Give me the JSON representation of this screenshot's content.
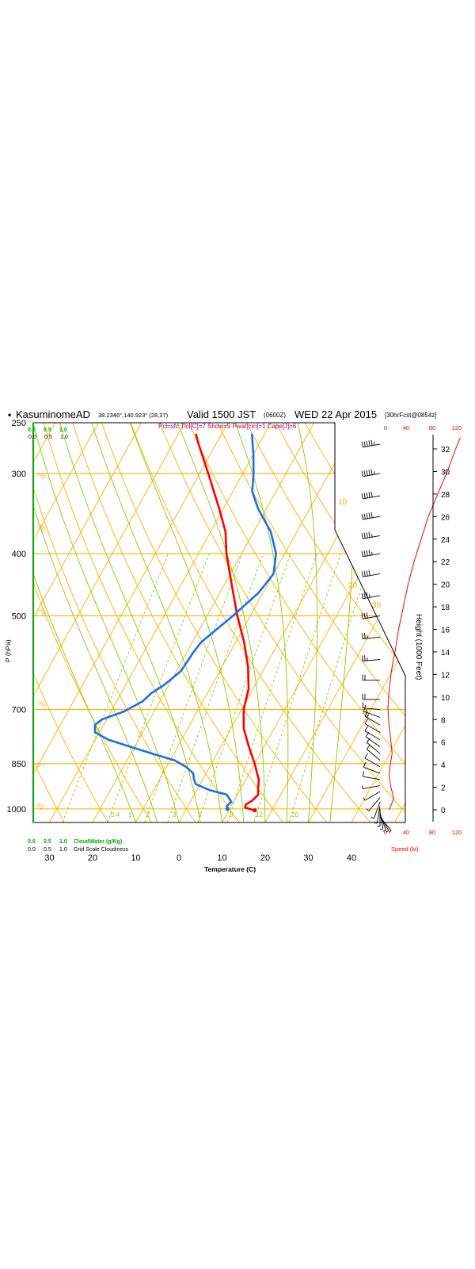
{
  "header": {
    "bullet": "•",
    "station": "KasuminomeAD",
    "coords": "38.2346°,140.923° (28,37)",
    "valid": "Valid 1500 JST",
    "utc": "(0600Z)",
    "date": "WED 22 Apr 2015",
    "fcst": "[30hrFcst@0854z]",
    "indices": "Pcl=sfc Tlcl[C]=7 Show=9 Pwat[cm]=1 Cape[J]=6"
  },
  "cloud_scales": {
    "top_green": [
      "0.0",
      "0.5",
      "1.0"
    ],
    "top_black": [
      "0.0",
      "0.5",
      "1.0"
    ],
    "bottom_green": [
      "0.0",
      "0.5",
      "1.0"
    ],
    "bottom_green_label": "CloudWater (g/Kg)",
    "bottom_black": [
      "0.0",
      "0.5",
      "1.0"
    ],
    "bottom_black_label": "Grid Scale Cloudiness"
  },
  "axes": {
    "ylabel": "P (hPa)",
    "xlabel": "Temperature (C)",
    "height_label": "Height (1000 Feet)",
    "speed_label": "Speed (kt)",
    "speed_ticks_top": [
      "0",
      "40",
      "80",
      "120"
    ],
    "speed_ticks_bottom": [
      "0",
      "40",
      "80",
      "120"
    ]
  },
  "chart_data": {
    "type": "line",
    "title": "",
    "xlabel": "Temperature (C)",
    "ylabel": "P (hPa)",
    "pressure_ticks": [
      250,
      300,
      400,
      500,
      700,
      850,
      1000
    ],
    "temperature_ticks": [
      {
        "value": -30,
        "label": "30"
      },
      {
        "value": -20,
        "label": "20"
      },
      {
        "value": -10,
        "label": "10"
      },
      {
        "value": 0,
        "label": "0"
      },
      {
        "value": 10,
        "label": "10"
      },
      {
        "value": 20,
        "label": "20"
      },
      {
        "value": 30,
        "label": "30"
      },
      {
        "value": 40,
        "label": "40"
      }
    ],
    "height_ticks_kft": [
      0,
      2,
      4,
      6,
      8,
      10,
      12,
      14,
      16,
      18,
      20,
      22,
      24,
      26,
      28,
      30,
      32
    ],
    "isotherm_labels": [
      "10",
      "0",
      "-10",
      "-20",
      "-30",
      "-40",
      "-50",
      "-60",
      "-70"
    ],
    "adiabat_labels": [
      "10",
      "20",
      "30"
    ],
    "mixing_ratio_labels": [
      "0.4",
      "1",
      "2",
      "3",
      "5",
      "8",
      "12",
      "20"
    ],
    "series": [
      {
        "name": "Temperature",
        "color": "#ff0000",
        "points": [
          {
            "p": 1005,
            "t": 16.0
          },
          {
            "p": 1000,
            "t": 14.6
          },
          {
            "p": 995,
            "t": 13.4
          },
          {
            "p": 985,
            "t": 13.2
          },
          {
            "p": 970,
            "t": 14.2
          },
          {
            "p": 950,
            "t": 14.8
          },
          {
            "p": 930,
            "t": 14.0
          },
          {
            "p": 900,
            "t": 13.0
          },
          {
            "p": 875,
            "t": 11.5
          },
          {
            "p": 850,
            "t": 10.0
          },
          {
            "p": 800,
            "t": 6.5
          },
          {
            "p": 750,
            "t": 3.0
          },
          {
            "p": 700,
            "t": 0.5
          },
          {
            "p": 650,
            "t": -1.0
          },
          {
            "p": 600,
            "t": -4.0
          },
          {
            "p": 550,
            "t": -8.0
          },
          {
            "p": 500,
            "t": -13.0
          },
          {
            "p": 450,
            "t": -18.0
          },
          {
            "p": 400,
            "t": -23.5
          },
          {
            "p": 370,
            "t": -26.5
          },
          {
            "p": 340,
            "t": -31.0
          },
          {
            "p": 300,
            "t": -38.0
          },
          {
            "p": 270,
            "t": -44.0
          },
          {
            "p": 260,
            "t": -46.0
          }
        ]
      },
      {
        "name": "Dewpoint",
        "color": "#1e6fe6",
        "points": [
          {
            "p": 1000,
            "t": 9.5
          },
          {
            "p": 990,
            "t": 9.0
          },
          {
            "p": 975,
            "t": 9.5
          },
          {
            "p": 950,
            "t": 7.5
          },
          {
            "p": 935,
            "t": 3.0
          },
          {
            "p": 915,
            "t": -1.0
          },
          {
            "p": 900,
            "t": -2.0
          },
          {
            "p": 880,
            "t": -3.0
          },
          {
            "p": 860,
            "t": -5.5
          },
          {
            "p": 840,
            "t": -9.0
          },
          {
            "p": 820,
            "t": -15.0
          },
          {
            "p": 800,
            "t": -21.0
          },
          {
            "p": 780,
            "t": -27.0
          },
          {
            "p": 760,
            "t": -31.0
          },
          {
            "p": 740,
            "t": -32.0
          },
          {
            "p": 725,
            "t": -31.0
          },
          {
            "p": 705,
            "t": -27.0
          },
          {
            "p": 680,
            "t": -24.0
          },
          {
            "p": 660,
            "t": -23.0
          },
          {
            "p": 640,
            "t": -21.0
          },
          {
            "p": 610,
            "t": -19.0
          },
          {
            "p": 570,
            "t": -18.5
          },
          {
            "p": 550,
            "t": -18.0
          },
          {
            "p": 500,
            "t": -14.0
          },
          {
            "p": 460,
            "t": -11.0
          },
          {
            "p": 430,
            "t": -10.0
          },
          {
            "p": 400,
            "t": -12.0
          },
          {
            "p": 370,
            "t": -16.0
          },
          {
            "p": 340,
            "t": -22.0
          },
          {
            "p": 320,
            "t": -25.5
          },
          {
            "p": 300,
            "t": -27.5
          },
          {
            "p": 280,
            "t": -30.0
          },
          {
            "p": 260,
            "t": -33.0
          }
        ]
      }
    ],
    "wind_speed_profile_kt": [
      {
        "height_kft": 0,
        "speed": 6
      },
      {
        "height_kft": 0.5,
        "speed": 10
      },
      {
        "height_kft": 1,
        "speed": 14
      },
      {
        "height_kft": 2,
        "speed": 9
      },
      {
        "height_kft": 3,
        "speed": 6
      },
      {
        "height_kft": 4,
        "speed": 8
      },
      {
        "height_kft": 5,
        "speed": 11
      },
      {
        "height_kft": 6,
        "speed": 9
      },
      {
        "height_kft": 7,
        "speed": 7
      },
      {
        "height_kft": 8,
        "speed": 5
      },
      {
        "height_kft": 9,
        "speed": 4
      },
      {
        "height_kft": 10,
        "speed": 5
      },
      {
        "height_kft": 11,
        "speed": 7
      },
      {
        "height_kft": 12,
        "speed": 9
      },
      {
        "height_kft": 13,
        "speed": 12
      },
      {
        "height_kft": 14,
        "speed": 16
      },
      {
        "height_kft": 16,
        "speed": 22
      },
      {
        "height_kft": 18,
        "speed": 30
      },
      {
        "height_kft": 20,
        "speed": 38
      },
      {
        "height_kft": 22,
        "speed": 48
      },
      {
        "height_kft": 24,
        "speed": 60
      },
      {
        "height_kft": 26,
        "speed": 72
      },
      {
        "height_kft": 28,
        "speed": 88
      },
      {
        "height_kft": 30,
        "speed": 104
      },
      {
        "height_kft": 32,
        "speed": 118
      },
      {
        "height_kft": 33,
        "speed": 126
      }
    ],
    "wind_barbs": [
      {
        "p": 270,
        "dir": 260,
        "speed": 55
      },
      {
        "p": 300,
        "dir": 260,
        "speed": 55
      },
      {
        "p": 325,
        "dir": 260,
        "speed": 50
      },
      {
        "p": 350,
        "dir": 260,
        "speed": 50
      },
      {
        "p": 375,
        "dir": 260,
        "speed": 45
      },
      {
        "p": 400,
        "dir": 260,
        "speed": 45
      },
      {
        "p": 430,
        "dir": 260,
        "speed": 40
      },
      {
        "p": 465,
        "dir": 260,
        "speed": 35
      },
      {
        "p": 500,
        "dir": 260,
        "speed": 30
      },
      {
        "p": 540,
        "dir": 265,
        "speed": 25
      },
      {
        "p": 585,
        "dir": 265,
        "speed": 25
      },
      {
        "p": 630,
        "dir": 270,
        "speed": 20
      },
      {
        "p": 675,
        "dir": 270,
        "speed": 20
      },
      {
        "p": 700,
        "dir": 275,
        "speed": 15
      },
      {
        "p": 720,
        "dir": 290,
        "speed": 15
      },
      {
        "p": 740,
        "dir": 300,
        "speed": 15
      },
      {
        "p": 760,
        "dir": 300,
        "speed": 10
      },
      {
        "p": 780,
        "dir": 300,
        "speed": 10
      },
      {
        "p": 800,
        "dir": 305,
        "speed": 10
      },
      {
        "p": 820,
        "dir": 310,
        "speed": 10
      },
      {
        "p": 840,
        "dir": 310,
        "speed": 10
      },
      {
        "p": 860,
        "dir": 300,
        "speed": 10
      },
      {
        "p": 880,
        "dir": 290,
        "speed": 10
      },
      {
        "p": 900,
        "dir": 280,
        "speed": 10
      },
      {
        "p": 920,
        "dir": 260,
        "speed": 5
      },
      {
        "p": 940,
        "dir": 240,
        "speed": 5
      },
      {
        "p": 960,
        "dir": 220,
        "speed": 5
      },
      {
        "p": 975,
        "dir": 200,
        "speed": 5
      },
      {
        "p": 990,
        "dir": 190,
        "speed": 5
      },
      {
        "p": 1000,
        "dir": 180,
        "speed": 5
      },
      {
        "p": 1010,
        "dir": 170,
        "speed": 5
      },
      {
        "p": 1018,
        "dir": 160,
        "speed": 5
      },
      {
        "p": 1024,
        "dir": 150,
        "speed": 5
      },
      {
        "p": 1030,
        "dir": 140,
        "speed": 5
      }
    ],
    "colors": {
      "isobar": "#ffb000",
      "isotherm": "#ffb000",
      "dry_adiabat": "#ffb000",
      "moist_adiabat": "#88cc00",
      "mixing_ratio": "#88cc00",
      "temperature": "#ff0000",
      "dewpoint": "#1e6fe6",
      "wind_speed": "#ff0000",
      "cloud_axis": "#00aa00"
    }
  }
}
